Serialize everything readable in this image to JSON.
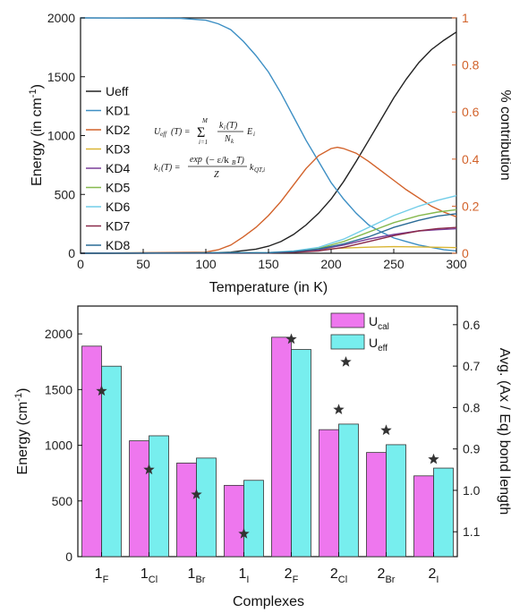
{
  "colors": {
    "orange_axis": "#d2622a",
    "Ueff": "#222222",
    "KD1": "#3d8fc4",
    "KD2": "#d2622a",
    "KD3": "#d9b534",
    "KD4": "#7a3e98",
    "KD5": "#86b94e",
    "KD6": "#72cde8",
    "KD7": "#8a2a4a",
    "KD8": "#2a6b96",
    "bar_cal": "#ee77ee",
    "bar_eff": "#77eeee",
    "star": "#333333"
  },
  "equations": {
    "line1": "U_eff(T) = Σ_{i=1}^{M} (k_i(T)/N_k) E_i",
    "line2": "k_i(T) = exp(−ε/k_B T) / Z · k_QT,i"
  },
  "chart_data": [
    {
      "type": "line",
      "xlabel": "Temperature (in K)",
      "ylabel": "Energy (in cm",
      "ylabel_sup": "-1",
      "ylabel_end": ")",
      "y2label": "% contribution",
      "xlim": [
        0,
        300
      ],
      "ylim": [
        0,
        2000
      ],
      "y2lim": [
        0,
        1
      ],
      "xticks": [
        "0",
        "50",
        "100",
        "150",
        "200",
        "250",
        "300"
      ],
      "yticks": [
        "0",
        "500",
        "1000",
        "1500",
        "2000"
      ],
      "y2ticks": [
        "0",
        "0.2",
        "0.4",
        "0.6",
        "0.8",
        "1"
      ],
      "legend_position": "left",
      "series": [
        {
          "name": "Ueff",
          "axis": "left",
          "points": [
            [
              0,
              0
            ],
            [
              100,
              2
            ],
            [
              120,
              10
            ],
            [
              140,
              35
            ],
            [
              150,
              60
            ],
            [
              160,
              100
            ],
            [
              170,
              160
            ],
            [
              180,
              240
            ],
            [
              190,
              340
            ],
            [
              200,
              460
            ],
            [
              210,
              610
            ],
            [
              220,
              780
            ],
            [
              230,
              960
            ],
            [
              240,
              1140
            ],
            [
              250,
              1320
            ],
            [
              260,
              1480
            ],
            [
              270,
              1620
            ],
            [
              280,
              1730
            ],
            [
              290,
              1810
            ],
            [
              300,
              1880
            ]
          ]
        },
        {
          "name": "KD1",
          "axis": "right",
          "points": [
            [
              0,
              1.0
            ],
            [
              80,
              0.998
            ],
            [
              100,
              0.99
            ],
            [
              110,
              0.975
            ],
            [
              120,
              0.95
            ],
            [
              130,
              0.9
            ],
            [
              140,
              0.84
            ],
            [
              150,
              0.77
            ],
            [
              160,
              0.68
            ],
            [
              170,
              0.58
            ],
            [
              180,
              0.48
            ],
            [
              190,
              0.39
            ],
            [
              200,
              0.3
            ],
            [
              210,
              0.23
            ],
            [
              220,
              0.17
            ],
            [
              230,
              0.12
            ],
            [
              240,
              0.09
            ],
            [
              250,
              0.065
            ],
            [
              260,
              0.05
            ],
            [
              270,
              0.035
            ],
            [
              280,
              0.025
            ],
            [
              290,
              0.015
            ],
            [
              300,
              0.01
            ]
          ]
        },
        {
          "name": "KD2",
          "axis": "right",
          "points": [
            [
              0,
              0
            ],
            [
              100,
              0.005
            ],
            [
              110,
              0.015
            ],
            [
              120,
              0.035
            ],
            [
              130,
              0.07
            ],
            [
              140,
              0.11
            ],
            [
              150,
              0.16
            ],
            [
              160,
              0.22
            ],
            [
              170,
              0.29
            ],
            [
              180,
              0.36
            ],
            [
              190,
              0.415
            ],
            [
              200,
              0.445
            ],
            [
              205,
              0.45
            ],
            [
              210,
              0.445
            ],
            [
              220,
              0.425
            ],
            [
              230,
              0.39
            ],
            [
              240,
              0.35
            ],
            [
              250,
              0.31
            ],
            [
              260,
              0.27
            ],
            [
              270,
              0.235
            ],
            [
              280,
              0.2
            ],
            [
              290,
              0.175
            ],
            [
              300,
              0.155
            ]
          ]
        },
        {
          "name": "KD3",
          "axis": "right",
          "points": [
            [
              0,
              0
            ],
            [
              150,
              0.002
            ],
            [
              170,
              0.008
            ],
            [
              190,
              0.015
            ],
            [
              210,
              0.022
            ],
            [
              230,
              0.026
            ],
            [
              250,
              0.028
            ],
            [
              270,
              0.027
            ],
            [
              290,
              0.025
            ],
            [
              300,
              0.024
            ]
          ]
        },
        {
          "name": "KD4",
          "axis": "right",
          "points": [
            [
              0,
              0
            ],
            [
              150,
              0.002
            ],
            [
              170,
              0.006
            ],
            [
              190,
              0.015
            ],
            [
              210,
              0.035
            ],
            [
              230,
              0.06
            ],
            [
              250,
              0.08
            ],
            [
              270,
              0.095
            ],
            [
              285,
              0.1
            ],
            [
              300,
              0.104
            ]
          ]
        },
        {
          "name": "KD5",
          "axis": "right",
          "points": [
            [
              0,
              0
            ],
            [
              150,
              0.002
            ],
            [
              170,
              0.008
            ],
            [
              190,
              0.02
            ],
            [
              210,
              0.05
            ],
            [
              230,
              0.09
            ],
            [
              250,
              0.13
            ],
            [
              270,
              0.16
            ],
            [
              285,
              0.175
            ],
            [
              300,
              0.185
            ]
          ]
        },
        {
          "name": "KD6",
          "axis": "right",
          "points": [
            [
              0,
              0
            ],
            [
              150,
              0.003
            ],
            [
              170,
              0.01
            ],
            [
              190,
              0.025
            ],
            [
              210,
              0.06
            ],
            [
              230,
              0.11
            ],
            [
              250,
              0.16
            ],
            [
              270,
              0.2
            ],
            [
              285,
              0.225
            ],
            [
              300,
              0.245
            ]
          ]
        },
        {
          "name": "KD7",
          "axis": "right",
          "points": [
            [
              0,
              0
            ],
            [
              150,
              0.001
            ],
            [
              170,
              0.004
            ],
            [
              190,
              0.01
            ],
            [
              210,
              0.025
            ],
            [
              230,
              0.05
            ],
            [
              250,
              0.075
            ],
            [
              270,
              0.095
            ],
            [
              285,
              0.105
            ],
            [
              300,
              0.11
            ]
          ]
        },
        {
          "name": "KD8",
          "axis": "right",
          "points": [
            [
              0,
              0
            ],
            [
              150,
              0.002
            ],
            [
              170,
              0.007
            ],
            [
              190,
              0.018
            ],
            [
              210,
              0.04
            ],
            [
              230,
              0.07
            ],
            [
              250,
              0.11
            ],
            [
              270,
              0.14
            ],
            [
              285,
              0.158
            ],
            [
              300,
              0.168
            ]
          ]
        }
      ]
    },
    {
      "type": "bar",
      "xlabel": "Complexes",
      "ylabel": "Energy (cm",
      "ylabel_sup": "-1",
      "ylabel_end": ")",
      "y2label": "Avg. (Ax / Eq) bond length",
      "ylim": [
        0,
        2250
      ],
      "y2lim": [
        1.16,
        0.555
      ],
      "yticks": [
        "0",
        "500",
        "1000",
        "1500",
        "2000"
      ],
      "y2ticks": [
        "0.6",
        "0.7",
        "0.8",
        "0.9",
        "1.0",
        "1.1"
      ],
      "categories": [
        {
          "main": "1",
          "sub": "F"
        },
        {
          "main": "1",
          "sub": "Cl"
        },
        {
          "main": "1",
          "sub": "Br"
        },
        {
          "main": "1",
          "sub": "I"
        },
        {
          "main": "2",
          "sub": "F"
        },
        {
          "main": "2",
          "sub": "Cl"
        },
        {
          "main": "2",
          "sub": "Br"
        },
        {
          "main": "2",
          "sub": "I"
        }
      ],
      "legend_position": "top-right",
      "series": [
        {
          "name": "U",
          "name_sub": "cal",
          "values": [
            1890,
            1040,
            840,
            640,
            1970,
            1140,
            935,
            725
          ]
        },
        {
          "name": "U",
          "name_sub": "eff",
          "values": [
            1710,
            1085,
            885,
            685,
            1860,
            1190,
            1005,
            795
          ]
        }
      ],
      "bond_length_stars": [
        0.76,
        0.95,
        1.01,
        1.105,
        0.635,
        0.805,
        0.855,
        0.925
      ],
      "bond_length_extra_star": {
        "category_index": 5,
        "value": 0.69
      }
    }
  ]
}
